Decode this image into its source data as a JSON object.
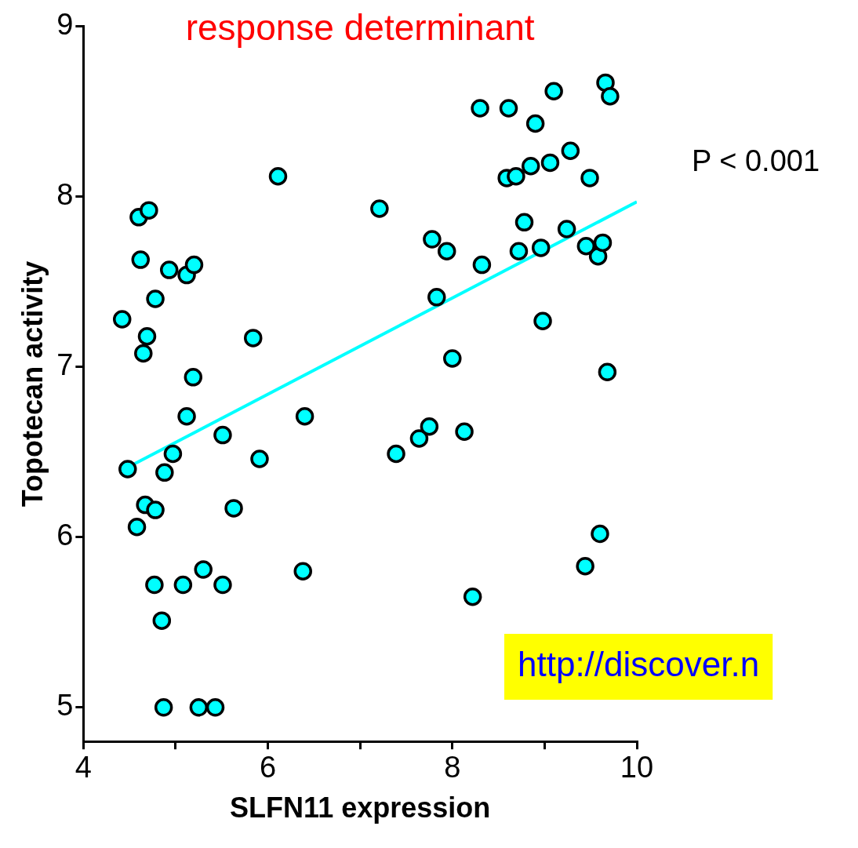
{
  "chart_data": {
    "type": "scatter",
    "title": "response determinant",
    "xlabel": "SLFN11 expression",
    "ylabel": "Topotecan activity",
    "annotations": [
      "P < 0.001",
      "http://discover.n"
    ],
    "xlim": [
      4,
      10
    ],
    "xticks": [
      4,
      {
        "value": 5,
        "label": null
      },
      6,
      {
        "value": 7,
        "label": null
      },
      8,
      {
        "value": 9,
        "label": null
      },
      10
    ],
    "ylim": [
      4.8,
      9
    ],
    "yticks": [
      5,
      6,
      7,
      8,
      9
    ],
    "grid": false,
    "legend": false,
    "series": [
      {
        "marker": "circle",
        "color": "#00ffff",
        "x": [
          4.42,
          4.48,
          4.58,
          4.6,
          4.62,
          4.71,
          4.69,
          4.65,
          4.67,
          4.77,
          4.78,
          4.78,
          4.85,
          4.87,
          4.88,
          4.93,
          4.97,
          5.12,
          5.2,
          5.12,
          5.19,
          5.08,
          5.3,
          5.25,
          5.43,
          5.51,
          5.51,
          5.63,
          5.91,
          5.84,
          6.11,
          6.38,
          6.4,
          7.21,
          7.39,
          7.64,
          7.75,
          7.78,
          7.83,
          7.94,
          8.0,
          8.13,
          8.22,
          8.3,
          8.32,
          8.61,
          8.59,
          8.69,
          8.72,
          8.78,
          8.85,
          8.9,
          8.96,
          8.98,
          9.06,
          9.1,
          9.28,
          9.24,
          9.45,
          9.44,
          9.49,
          9.58,
          9.6,
          9.63,
          9.66,
          9.68,
          9.71
        ],
        "values": [
          7.28,
          6.4,
          6.06,
          7.88,
          7.63,
          7.92,
          7.18,
          7.08,
          6.19,
          5.72,
          6.16,
          7.4,
          5.51,
          5.0,
          6.38,
          7.57,
          6.49,
          7.54,
          7.6,
          6.71,
          6.94,
          5.72,
          5.81,
          5.0,
          5.0,
          6.6,
          5.72,
          6.17,
          6.46,
          7.17,
          8.12,
          5.8,
          6.71,
          7.93,
          6.49,
          6.58,
          6.65,
          7.75,
          7.41,
          7.68,
          7.05,
          6.62,
          5.65,
          8.52,
          7.6,
          8.52,
          8.11,
          8.12,
          7.68,
          7.85,
          8.18,
          8.43,
          7.7,
          7.27,
          8.2,
          8.62,
          8.27,
          7.81,
          7.71,
          5.83,
          8.11,
          7.65,
          6.02,
          7.73,
          8.67,
          6.97,
          8.59
        ]
      },
      {
        "type": "line",
        "color": "#00ffff",
        "x": [
          4.55,
          10
        ],
        "values": [
          6.43,
          7.97
        ]
      }
    ]
  }
}
